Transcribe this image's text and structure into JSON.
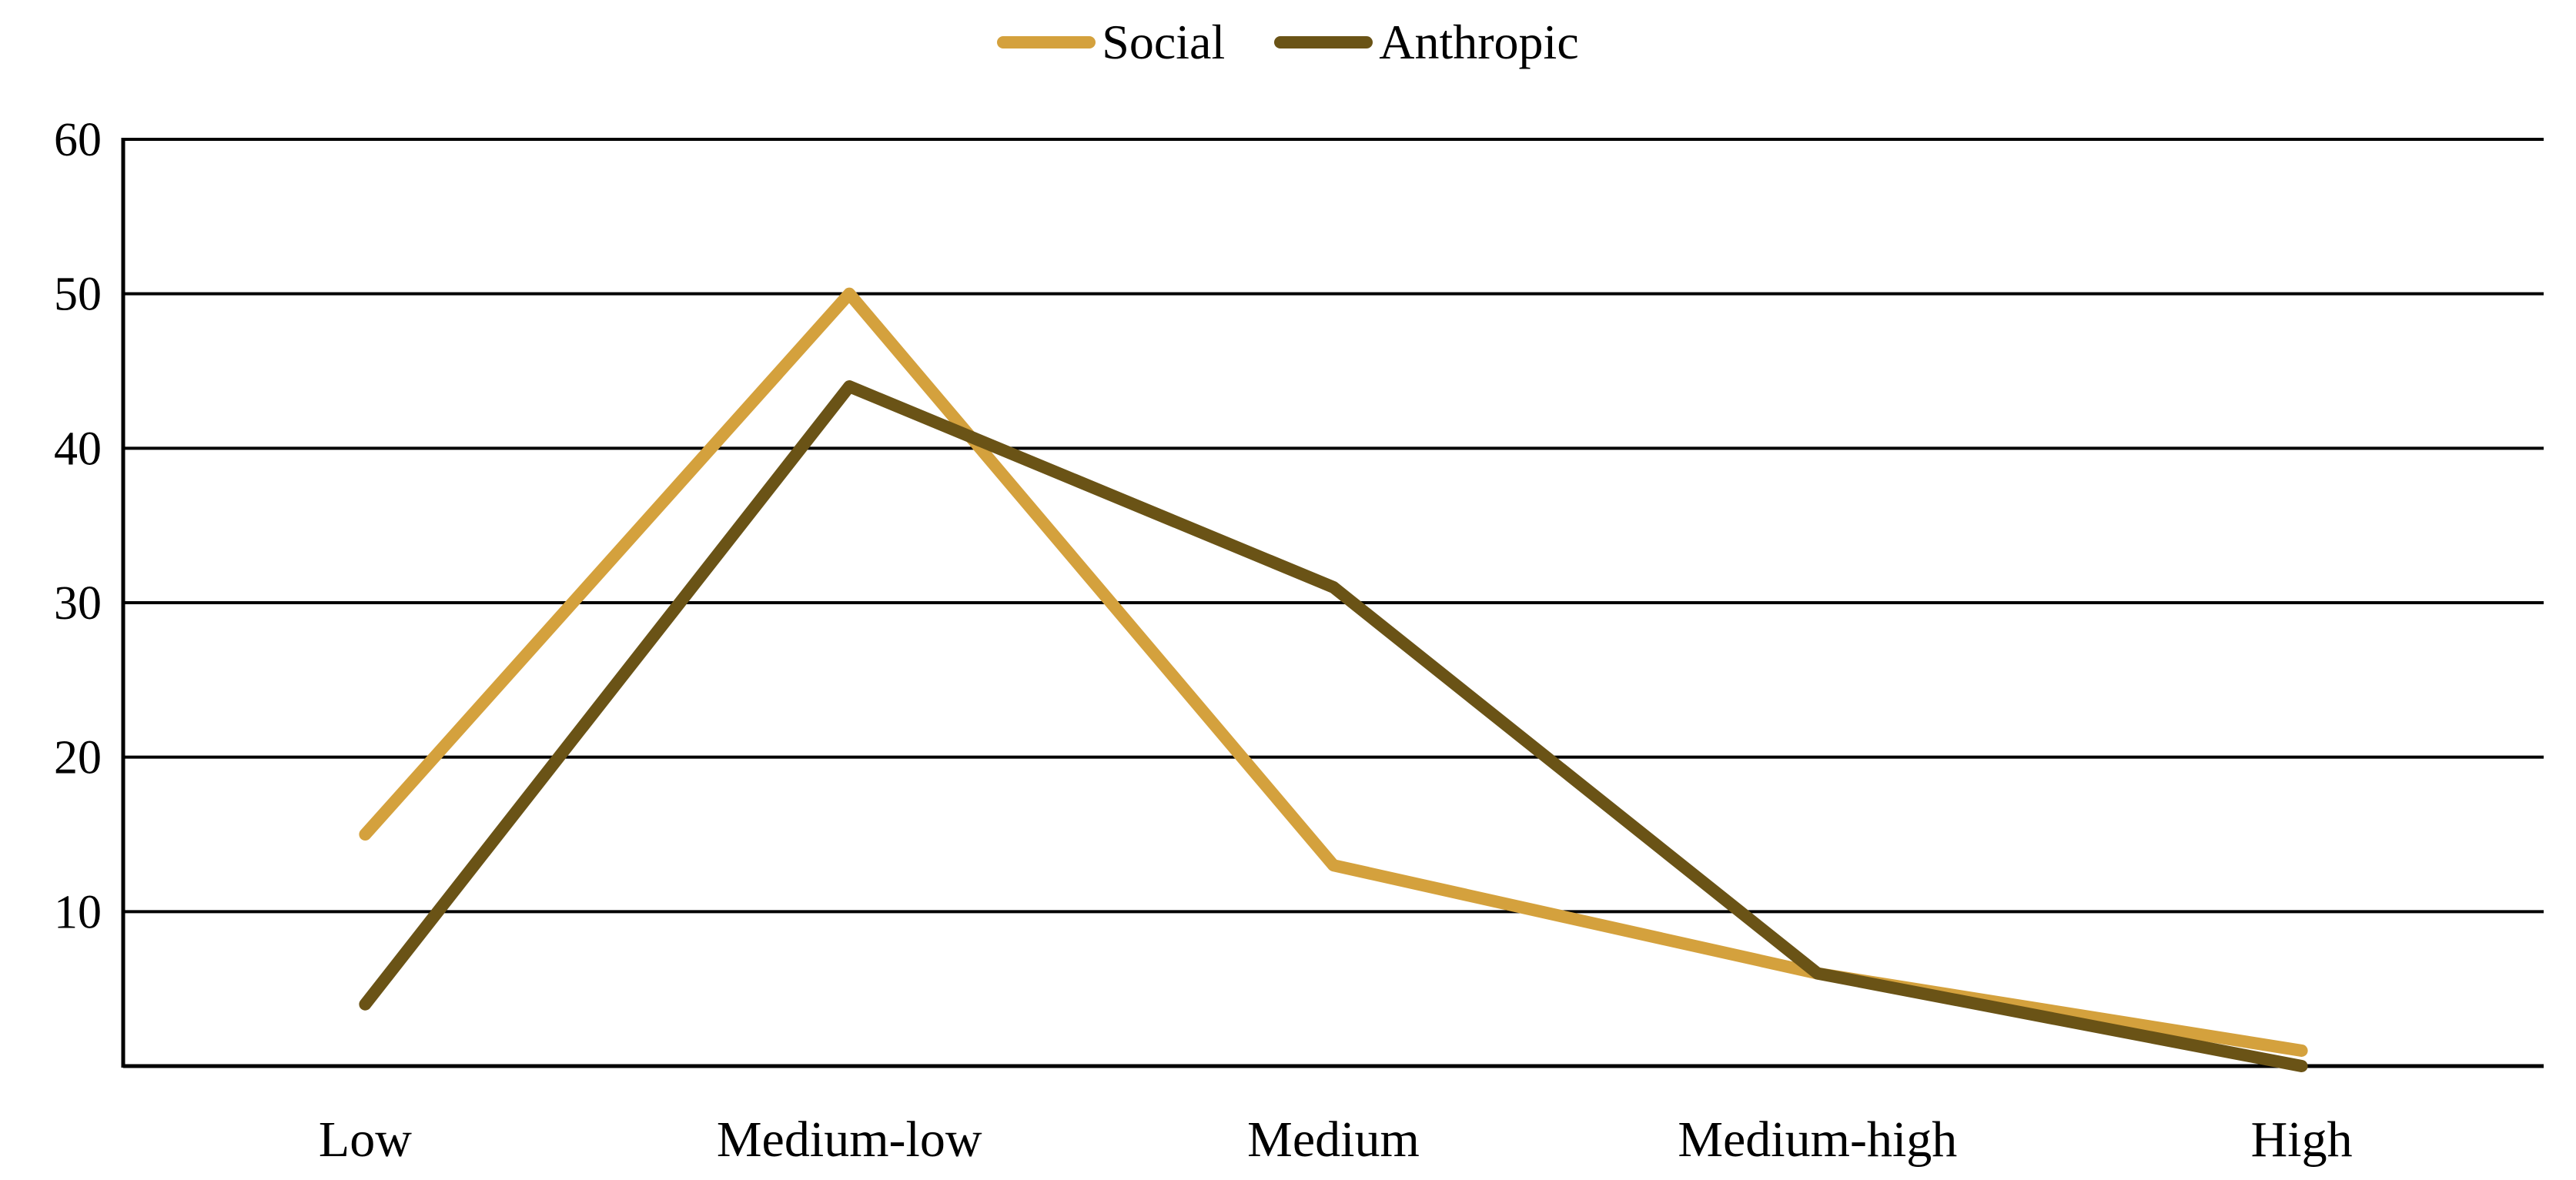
{
  "chart_data": {
    "type": "line",
    "title": "",
    "categories": [
      "Low",
      "Medium-low",
      "Medium",
      "Medium-high",
      "High"
    ],
    "series": [
      {
        "name": "Social",
        "color": "#D4A13D",
        "values": [
          15,
          50,
          13,
          6,
          1
        ]
      },
      {
        "name": "Anthropic",
        "color": "#6A5316",
        "values": [
          4,
          44,
          31,
          6,
          0
        ]
      }
    ],
    "xlabel": "",
    "ylabel": "",
    "ylim": [
      0,
      60
    ],
    "ytick_step": 10,
    "ytick_labels": [
      "10",
      "20",
      "30",
      "40",
      "50",
      "60"
    ],
    "grid": true,
    "legend_position": "top-center",
    "axis_color": "#000000",
    "text_color": "#000000",
    "background": "#FFFFFF"
  }
}
